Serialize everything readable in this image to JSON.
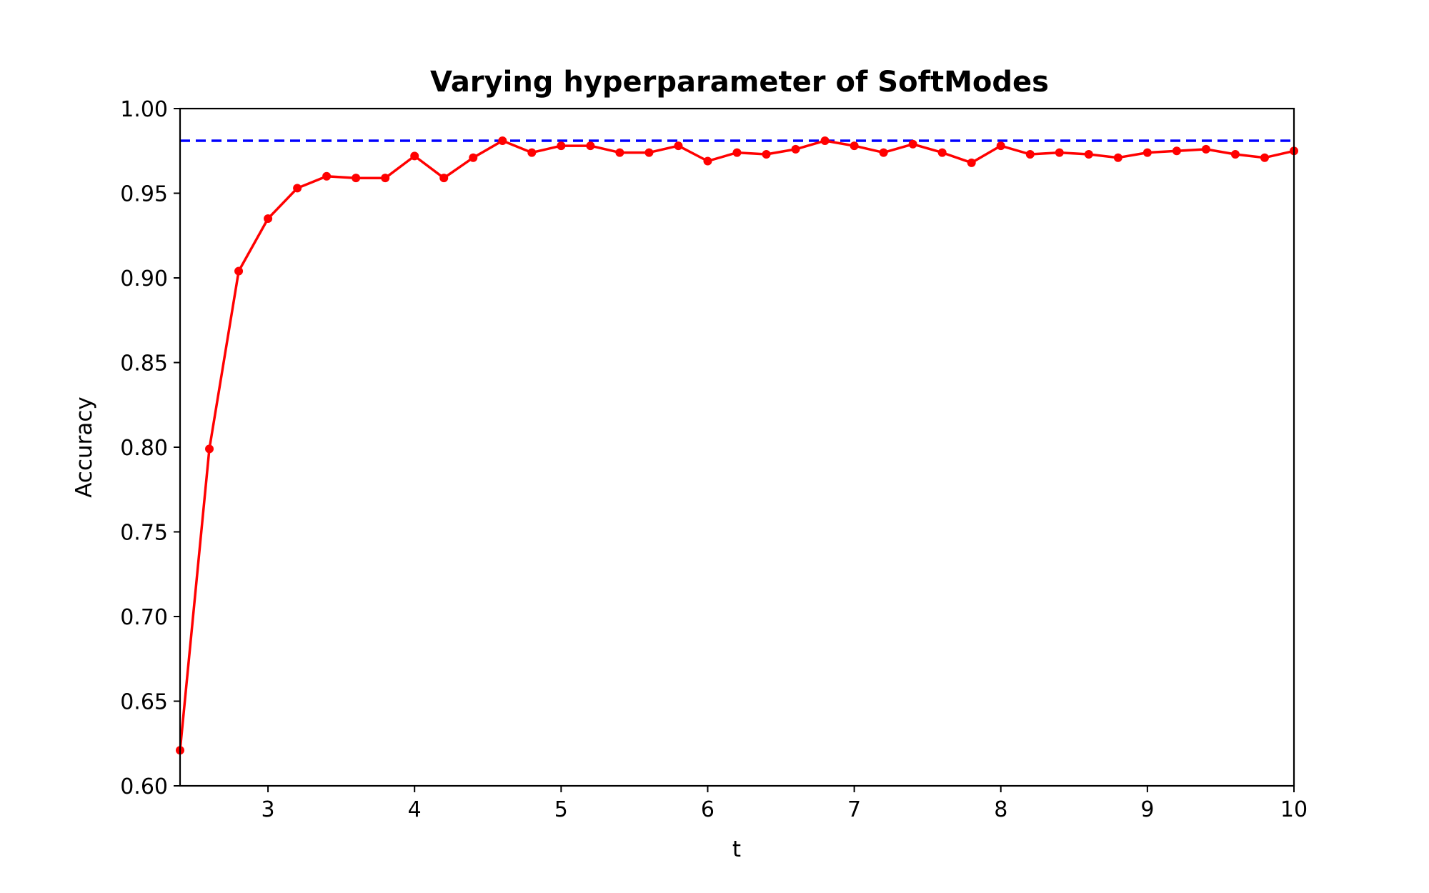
{
  "chart_data": {
    "type": "line",
    "title": "Varying hyperparameter of SoftModes",
    "xlabel": "t",
    "ylabel": "Accuracy",
    "xlim": [
      2.4,
      10.0
    ],
    "ylim": [
      0.6,
      1.0
    ],
    "x_ticks": [
      "3",
      "4",
      "5",
      "6",
      "7",
      "8",
      "9",
      "10"
    ],
    "x_tick_values": [
      3,
      4,
      5,
      6,
      7,
      8,
      9,
      10
    ],
    "y_ticks": [
      "0.60",
      "0.65",
      "0.70",
      "0.75",
      "0.80",
      "0.85",
      "0.90",
      "0.95",
      "1.00"
    ],
    "y_tick_values": [
      0.6,
      0.65,
      0.7,
      0.75,
      0.8,
      0.85,
      0.9,
      0.95,
      1.0
    ],
    "grid": false,
    "reference_line": {
      "y": 0.981,
      "color": "#0000ff",
      "style": "dashed"
    },
    "series": [
      {
        "color": "#ff0000",
        "marker": "circle",
        "x": [
          2.4,
          2.6,
          2.8,
          3.0,
          3.2,
          3.4,
          3.6,
          3.8,
          4.0,
          4.2,
          4.4,
          4.6,
          4.8,
          5.0,
          5.2,
          5.4,
          5.6,
          5.8,
          6.0,
          6.2,
          6.4,
          6.6,
          6.8,
          7.0,
          7.2,
          7.4,
          7.6,
          7.8,
          8.0,
          8.2,
          8.4,
          8.6,
          8.8,
          9.0,
          9.2,
          9.4,
          9.6,
          9.8,
          10.0
        ],
        "y": [
          0.621,
          0.799,
          0.904,
          0.935,
          0.953,
          0.96,
          0.959,
          0.959,
          0.972,
          0.959,
          0.971,
          0.981,
          0.974,
          0.978,
          0.978,
          0.974,
          0.974,
          0.978,
          0.969,
          0.974,
          0.973,
          0.976,
          0.981,
          0.978,
          0.974,
          0.979,
          0.974,
          0.968,
          0.978,
          0.973,
          0.974,
          0.973,
          0.971,
          0.974,
          0.975,
          0.976,
          0.973,
          0.971,
          0.975
        ]
      }
    ]
  }
}
